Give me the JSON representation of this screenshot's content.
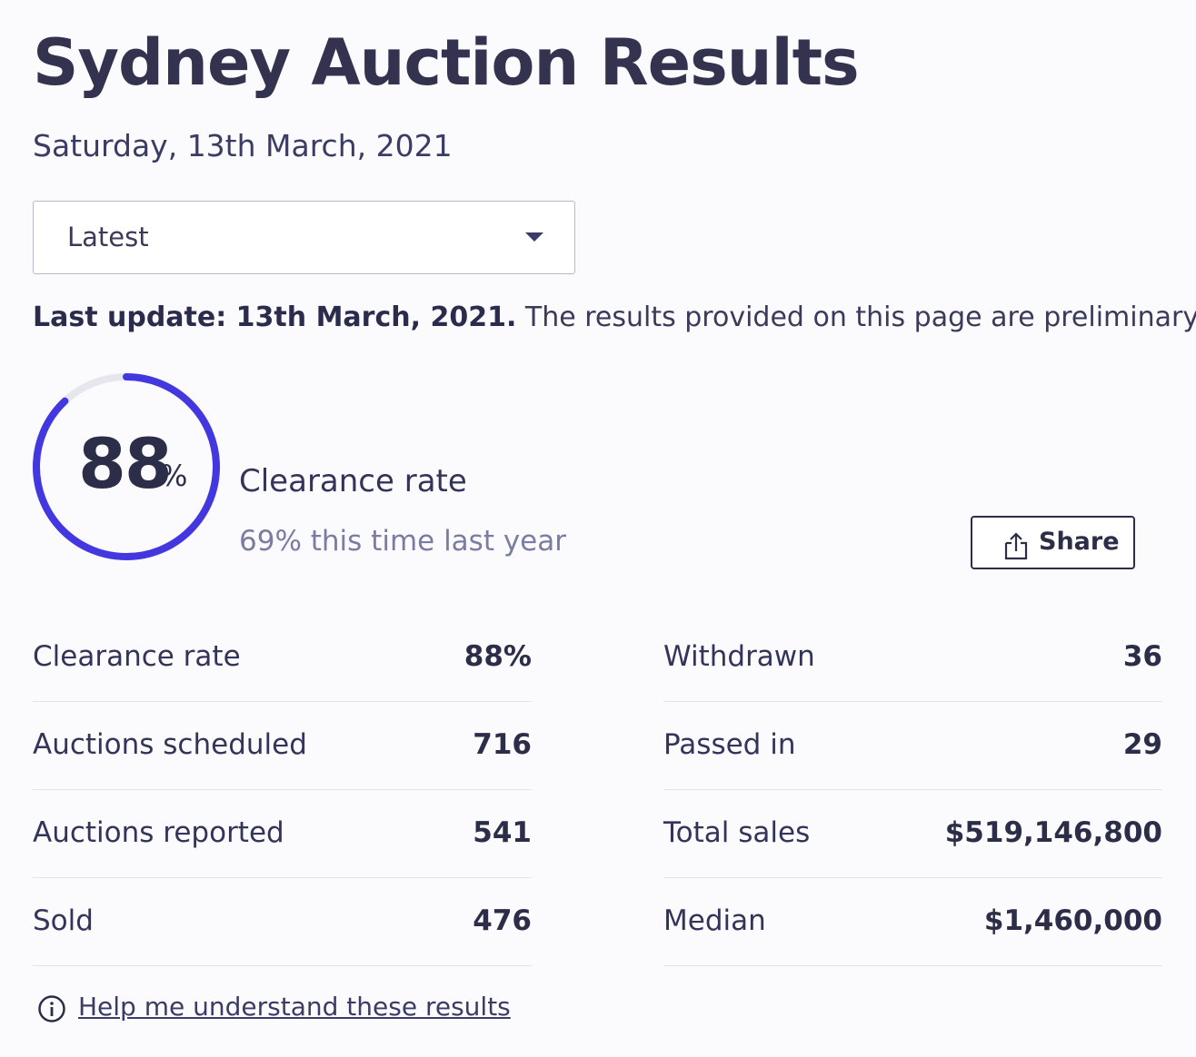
{
  "header": {
    "title": "Sydney Auction Results",
    "date": "Saturday, 13th March, 2021"
  },
  "filter": {
    "selected": "Latest",
    "icon": "chevron-down-icon"
  },
  "notice": {
    "bold": "Last update: 13th March, 2021.",
    "text": " The results provided on this page are preliminary and curre"
  },
  "summary": {
    "clearance_value": "88",
    "clearance_unit": "%",
    "clearance_fraction": 0.88,
    "label": "Clearance rate",
    "comparison": "69% this time last year",
    "ring_color": "#4338e0",
    "ring_track_color": "#e6e7ee"
  },
  "share": {
    "label": "Share",
    "icon": "share-icon"
  },
  "stats": {
    "left": [
      {
        "label": "Clearance rate",
        "value": "88%"
      },
      {
        "label": "Auctions scheduled",
        "value": "716"
      },
      {
        "label": "Auctions reported",
        "value": "541"
      },
      {
        "label": "Sold",
        "value": "476"
      }
    ],
    "right": [
      {
        "label": "Withdrawn",
        "value": "36"
      },
      {
        "label": "Passed in",
        "value": "29"
      },
      {
        "label": "Total sales",
        "value": "$519,146,800"
      },
      {
        "label": "Median",
        "value": "$1,460,000"
      }
    ]
  },
  "help": {
    "label": "Help me understand these results",
    "icon": "info-icon"
  }
}
